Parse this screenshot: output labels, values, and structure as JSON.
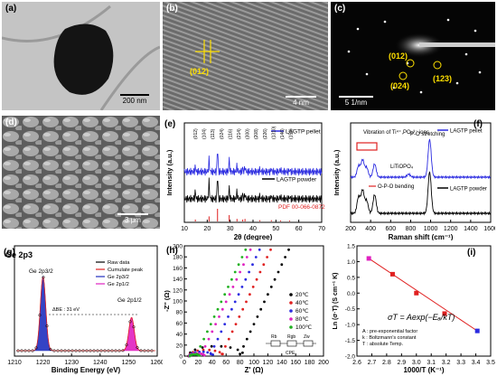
{
  "figure_panels": {
    "a": {
      "label": "(a)",
      "scalebar": "200 nm"
    },
    "b": {
      "label": "(b)",
      "annotation": "(012)",
      "scalebar": "4 nm"
    },
    "c": {
      "label": "(c)",
      "spots": [
        "(012)",
        "(024)",
        "(123)"
      ],
      "scalebar": "5 1/nm"
    },
    "d": {
      "label": "(d)",
      "scalebar": "3 μm"
    },
    "e": {
      "label": "(e)"
    },
    "f": {
      "label": "(f)"
    },
    "g": {
      "label": "(g)",
      "title": "Ge 2p3"
    },
    "h": {
      "label": "(h)"
    },
    "i": {
      "label": "(i)"
    }
  },
  "chart_data": [
    {
      "panel": "e",
      "type": "line",
      "xlabel": "2θ (degree)",
      "ylabel": "Intensity (a.u.)",
      "xlim": [
        10,
        70
      ],
      "xticks": [
        10,
        20,
        30,
        40,
        50,
        60,
        70
      ],
      "series": [
        {
          "name": "LAGTP pellet",
          "color": "#2b2be0",
          "peaks": [
            [
              14.8,
              0.2
            ],
            [
              20.8,
              0.5
            ],
            [
              24.5,
              1.0
            ],
            [
              29.6,
              0.5
            ],
            [
              33.0,
              0.25
            ],
            [
              35.5,
              0.15
            ],
            [
              36.5,
              0.2
            ],
            [
              43.0,
              0.1
            ],
            [
              48.0,
              0.12
            ],
            [
              52.0,
              0.1
            ],
            [
              56.0,
              0.08
            ]
          ]
        },
        {
          "name": "LAGTP powder",
          "color": "#000000",
          "peaks": [
            [
              14.8,
              0.3
            ],
            [
              20.8,
              0.7
            ],
            [
              24.5,
              1.0
            ],
            [
              29.6,
              0.45
            ],
            [
              33.0,
              0.3
            ],
            [
              35.5,
              0.2
            ],
            [
              36.5,
              0.2
            ],
            [
              43.0,
              0.12
            ],
            [
              48.0,
              0.12
            ],
            [
              52.0,
              0.1
            ],
            [
              56.0,
              0.08
            ]
          ]
        },
        {
          "name": "PDF 00-066-0872",
          "color": "#e02020",
          "sticks": [
            [
              14.8,
              0.15
            ],
            [
              20.8,
              0.4
            ],
            [
              24.5,
              1.0
            ],
            [
              29.6,
              0.5
            ],
            [
              33.0,
              0.2
            ],
            [
              35.5,
              0.15
            ],
            [
              36.5,
              0.2
            ],
            [
              43.0,
              0.1
            ],
            [
              48.0,
              0.1
            ],
            [
              52.0,
              0.08
            ],
            [
              56.0,
              0.07
            ]
          ]
        }
      ],
      "peak_labels": [
        "(012)",
        "(104)",
        "(113)",
        "(024)",
        "(116)",
        "(214)",
        "(300)",
        "(208)",
        "(226)",
        "(1310)",
        "(146)",
        "(150)"
      ]
    },
    {
      "panel": "f",
      "type": "line",
      "xlabel": "Raman shift (cm⁻¹)",
      "ylabel": "Intensity (a.u.)",
      "xlim": [
        200,
        1600
      ],
      "xticks": [
        200,
        400,
        600,
        800,
        1000,
        1200,
        1400,
        1600
      ],
      "series": [
        {
          "name": "LAGTP pellet",
          "color": "#2b2be0",
          "peaks": [
            [
              280,
              0.3
            ],
            [
              320,
              0.45
            ],
            [
              360,
              0.25
            ],
            [
              440,
              0.35
            ],
            [
              780,
              0.08
            ],
            [
              990,
              1.0
            ]
          ]
        },
        {
          "name": "LAGTP powder",
          "color": "#000000",
          "peaks": [
            [
              280,
              0.4
            ],
            [
              320,
              0.55
            ],
            [
              360,
              0.3
            ],
            [
              440,
              0.45
            ],
            [
              990,
              1.0
            ]
          ]
        }
      ],
      "annotations": [
        "Vibration of Ti⁴⁺,PO₄³⁻ ions",
        "P-O stretching",
        "LiTiOPO₄",
        "O-P-O bending"
      ]
    },
    {
      "panel": "g",
      "type": "line",
      "xlabel": "Binding Energy (eV)",
      "ylabel": "Intensity (a.u.)",
      "xlim": [
        1210,
        1260
      ],
      "xticks": [
        1210,
        1220,
        1230,
        1240,
        1250,
        1260
      ],
      "series": [
        {
          "name": "Raw data",
          "color": "#000000"
        },
        {
          "name": "Cumulate peak",
          "color": "#e02020"
        },
        {
          "name": "Ge 2p3/2",
          "color": "#1f2fbf",
          "center": 1220.0,
          "height": 1.0
        },
        {
          "name": "Ge 2p1/2",
          "color": "#e020c0",
          "center": 1251.0,
          "height": 0.45
        }
      ],
      "annotations": [
        "Ge 2p3/2",
        "Ge 2p1/2",
        "ΔBE : 31 eV"
      ]
    },
    {
      "panel": "h",
      "type": "scatter",
      "xlabel": "Z' (Ω)",
      "ylabel": "-Z'' (Ω)",
      "xlim": [
        0,
        200
      ],
      "ylim": [
        0,
        200
      ],
      "xticks": [
        0,
        20,
        40,
        60,
        80,
        100,
        120,
        140,
        160,
        180,
        200
      ],
      "yticks": [
        0,
        20,
        40,
        60,
        80,
        100,
        120,
        140,
        160,
        180,
        200
      ],
      "series": [
        {
          "name": "20℃",
          "color": "#000000",
          "r": 80,
          "tail_start": 80
        },
        {
          "name": "40℃",
          "color": "#e02020",
          "r": 50,
          "tail_start": 54
        },
        {
          "name": "60℃",
          "color": "#2b2be0",
          "r": 35,
          "tail_start": 38
        },
        {
          "name": "80℃",
          "color": "#e020c0",
          "r": 22,
          "tail_start": 25
        },
        {
          "name": "100℃",
          "color": "#20b020",
          "r": 14,
          "tail_start": 18
        }
      ],
      "circuit_labels": [
        "Rb",
        "Rgb",
        "Zw",
        "CPE"
      ]
    },
    {
      "panel": "i",
      "type": "scatter",
      "xlabel": "1000/T (K⁻¹)",
      "ylabel": "Ln (σ·T) (S cm⁻¹ K)",
      "xlim": [
        2.6,
        3.5
      ],
      "ylim": [
        -2.0,
        1.5
      ],
      "xticks": [
        2.6,
        2.7,
        2.8,
        2.9,
        3.0,
        3.1,
        3.2,
        3.3,
        3.4,
        3.5
      ],
      "yticks": [
        -2.0,
        -1.5,
        -1.0,
        -0.5,
        0.0,
        0.5,
        1.0,
        1.5
      ],
      "x": [
        2.68,
        2.84,
        3.0,
        3.19,
        3.41
      ],
      "y": [
        1.1,
        0.6,
        0.0,
        -0.65,
        -1.2
      ],
      "fit_color": "#e02020",
      "equation": "σT = Aexp(−Eₐ/kT)",
      "notes": [
        "A : pre-exponential factor",
        "k : Boltzmann's constant",
        "T : absolute Temp."
      ]
    }
  ]
}
